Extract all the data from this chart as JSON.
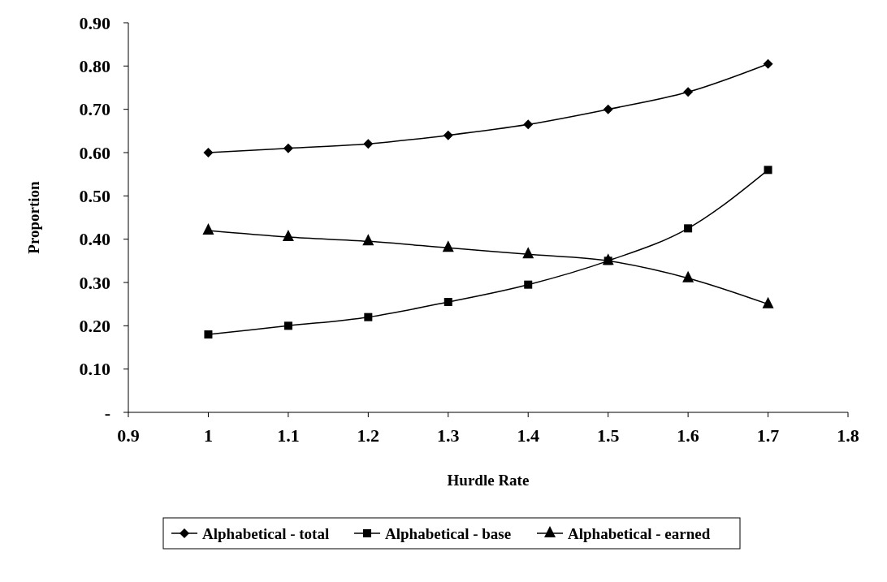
{
  "chart_data": {
    "type": "line",
    "xlabel": "Hurdle Rate",
    "ylabel": "Proportion",
    "x": [
      1,
      1.1,
      1.2,
      1.3,
      1.4,
      1.5,
      1.6,
      1.7
    ],
    "series": [
      {
        "name": "Alphabetical - total",
        "color": "#000000",
        "marker": "diamond",
        "values": [
          0.6,
          0.61,
          0.62,
          0.64,
          0.665,
          0.7,
          0.74,
          0.805
        ]
      },
      {
        "name": "Alphabetical - base",
        "color": "#000000",
        "marker": "square",
        "values": [
          0.18,
          0.2,
          0.22,
          0.255,
          0.295,
          0.35,
          0.425,
          0.56
        ]
      },
      {
        "name": "Alphabetical - earned",
        "color": "#000000",
        "marker": "triangle",
        "values": [
          0.42,
          0.405,
          0.395,
          0.38,
          0.365,
          0.35,
          0.31,
          0.25
        ]
      }
    ],
    "xlim": [
      0.9,
      1.8
    ],
    "xticks": [
      0.9,
      1,
      1.1,
      1.2,
      1.3,
      1.4,
      1.5,
      1.6,
      1.7,
      1.8
    ],
    "ylim": [
      0,
      0.9
    ],
    "yticks": [
      {
        "value": 0,
        "label": "-"
      },
      {
        "value": 0.1,
        "label": "0.10"
      },
      {
        "value": 0.2,
        "label": "0.20"
      },
      {
        "value": 0.3,
        "label": "0.30"
      },
      {
        "value": 0.4,
        "label": "0.40"
      },
      {
        "value": 0.5,
        "label": "0.50"
      },
      {
        "value": 0.6,
        "label": "0.60"
      },
      {
        "value": 0.7,
        "label": "0.70"
      },
      {
        "value": 0.8,
        "label": "0.80"
      },
      {
        "value": 0.9,
        "label": "0.90"
      }
    ],
    "grid": false,
    "legend": "bottom"
  }
}
